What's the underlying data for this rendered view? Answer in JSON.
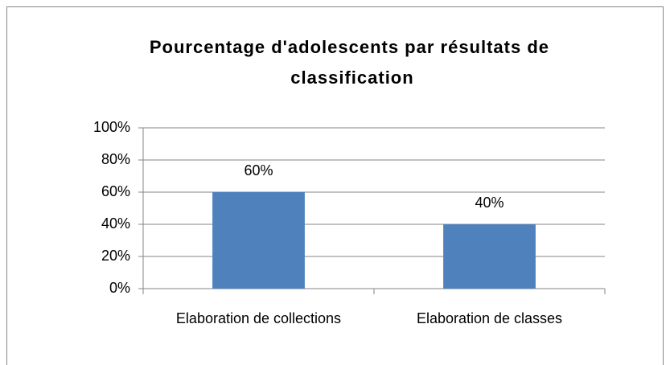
{
  "chart_data": {
    "type": "bar",
    "title": "Pourcentage d'adolescents par résultats de classification",
    "categories": [
      "Elaboration de collections",
      "Elaboration de classes"
    ],
    "values": [
      60,
      40
    ],
    "value_labels": [
      "60%",
      "40%"
    ],
    "color": "#4f81bd",
    "ylim": [
      0,
      100
    ],
    "yticks": [
      {
        "value": 0,
        "label": "0%"
      },
      {
        "value": 20,
        "label": "20%"
      },
      {
        "value": 40,
        "label": "40%"
      },
      {
        "value": 60,
        "label": "60%"
      },
      {
        "value": 80,
        "label": "80%"
      },
      {
        "value": 100,
        "label": "100%"
      }
    ],
    "grid": true
  }
}
